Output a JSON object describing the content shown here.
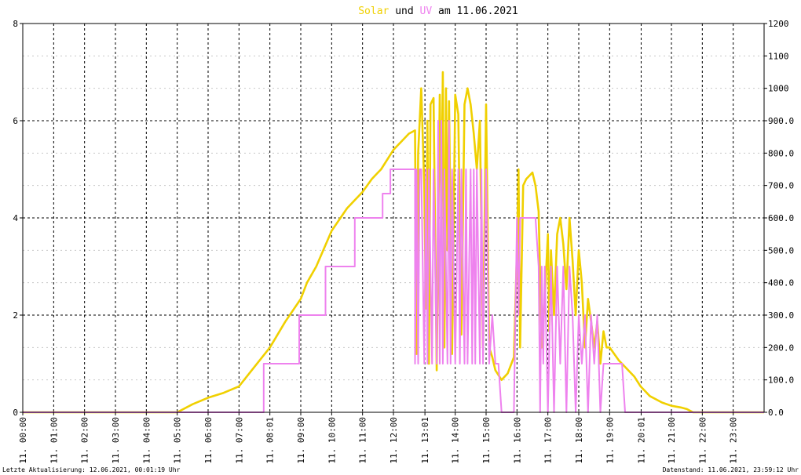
{
  "chart_data": {
    "type": "line",
    "title_parts": [
      {
        "text": "Solar",
        "color": "#f0d000"
      },
      {
        "text": " und ",
        "color": "#000000"
      },
      {
        "text": "UV",
        "color": "#ee82ee"
      },
      {
        "text": " am 11.06.2021",
        "color": "#000000"
      }
    ],
    "xlim": [
      0,
      24
    ],
    "x_ticks": [
      {
        "x": 0.0,
        "label": "11. 00:00"
      },
      {
        "x": 1.0,
        "label": "11. 01:00"
      },
      {
        "x": 2.0,
        "label": "11. 02:00"
      },
      {
        "x": 3.0,
        "label": "11. 03:00"
      },
      {
        "x": 4.0,
        "label": "11. 04:00"
      },
      {
        "x": 5.0,
        "label": "11. 05:00"
      },
      {
        "x": 6.0,
        "label": "11. 06:00"
      },
      {
        "x": 7.0,
        "label": "11. 07:00"
      },
      {
        "x": 8.0,
        "label": "11. 08:01"
      },
      {
        "x": 9.0,
        "label": "11. 09:00"
      },
      {
        "x": 10.0,
        "label": "11. 10:00"
      },
      {
        "x": 11.0,
        "label": "11. 11:00"
      },
      {
        "x": 12.0,
        "label": "11. 12:00"
      },
      {
        "x": 13.02,
        "label": "11. 13:01"
      },
      {
        "x": 14.0,
        "label": "11. 14:00"
      },
      {
        "x": 15.0,
        "label": "11. 15:00"
      },
      {
        "x": 16.0,
        "label": "11. 16:00"
      },
      {
        "x": 17.0,
        "label": "11. 17:00"
      },
      {
        "x": 18.0,
        "label": "11. 18:00"
      },
      {
        "x": 19.0,
        "label": "11. 19:00"
      },
      {
        "x": 20.02,
        "label": "11. 20:01"
      },
      {
        "x": 21.0,
        "label": "11. 21:00"
      },
      {
        "x": 22.0,
        "label": "11. 22:00"
      },
      {
        "x": 23.0,
        "label": "11. 23:00"
      }
    ],
    "y_left": {
      "lim": [
        0,
        8
      ],
      "ticks": [
        "0",
        "2",
        "4",
        "6",
        "8"
      ]
    },
    "y_right": {
      "lim": [
        0,
        1200
      ],
      "ticks": [
        "0.0",
        "100.0",
        "200.0",
        "300.0",
        "400.0",
        "500.0",
        "600.0",
        "700.0",
        "800.0",
        "900.0",
        "1000",
        "1100",
        "1200"
      ]
    },
    "grid": true,
    "series": [
      {
        "axis": "right",
        "color": "#f0d000",
        "x": [
          0,
          5.0,
          5.5,
          6.0,
          6.5,
          7.0,
          7.5,
          8.0,
          8.5,
          9.0,
          9.2,
          9.5,
          10.0,
          10.5,
          11.0,
          11.3,
          11.5,
          11.6,
          12.0,
          12.5,
          12.7,
          12.75,
          12.8,
          12.9,
          13.0,
          13.05,
          13.1,
          13.15,
          13.2,
          13.3,
          13.4,
          13.5,
          13.55,
          13.6,
          13.65,
          13.7,
          13.75,
          13.8,
          13.9,
          14.0,
          14.1,
          14.2,
          14.3,
          14.4,
          14.5,
          14.6,
          14.7,
          14.8,
          14.9,
          15.0,
          15.1,
          15.2,
          15.3,
          15.5,
          15.7,
          15.9,
          16.0,
          16.05,
          16.1,
          16.2,
          16.3,
          16.5,
          16.6,
          16.7,
          16.8,
          16.9,
          17.0,
          17.05,
          17.1,
          17.2,
          17.3,
          17.4,
          17.5,
          17.6,
          17.7,
          17.8,
          17.9,
          18.0,
          18.1,
          18.2,
          18.3,
          18.4,
          18.5,
          18.6,
          18.7,
          18.8,
          18.9,
          19.0,
          19.3,
          19.5,
          19.8,
          20.0,
          20.3,
          20.7,
          21.0,
          21.3,
          21.5,
          21.7,
          24
        ],
        "y": [
          0,
          0,
          25,
          45,
          60,
          80,
          140,
          200,
          280,
          350,
          400,
          450,
          560,
          630,
          680,
          720,
          740,
          750,
          810,
          860,
          870,
          180,
          800,
          1000,
          700,
          320,
          900,
          150,
          950,
          970,
          130,
          980,
          600,
          1050,
          200,
          1000,
          500,
          960,
          180,
          980,
          920,
          240,
          950,
          1000,
          950,
          860,
          750,
          900,
          200,
          950,
          200,
          170,
          130,
          100,
          120,
          170,
          500,
          750,
          200,
          700,
          720,
          740,
          700,
          620,
          200,
          350,
          550,
          250,
          500,
          300,
          550,
          600,
          520,
          380,
          600,
          470,
          300,
          500,
          400,
          200,
          350,
          280,
          200,
          280,
          150,
          250,
          200,
          200,
          160,
          140,
          110,
          80,
          50,
          30,
          20,
          15,
          10,
          0,
          0
        ]
      },
      {
        "axis": "left",
        "color": "#ee82ee",
        "x": [
          0,
          7.8,
          7.8,
          8.95,
          8.95,
          9.8,
          9.8,
          10.75,
          10.75,
          11.65,
          11.65,
          11.9,
          11.9,
          12.7,
          12.7,
          12.75,
          12.8,
          12.85,
          12.9,
          13.0,
          13.05,
          13.1,
          13.15,
          13.25,
          13.3,
          13.4,
          13.45,
          13.5,
          13.55,
          13.6,
          13.65,
          13.75,
          13.8,
          13.85,
          13.9,
          14.0,
          14.1,
          14.15,
          14.2,
          14.3,
          14.35,
          14.4,
          14.5,
          14.55,
          14.6,
          14.65,
          14.7,
          14.8,
          14.85,
          14.9,
          15.0,
          15.1,
          15.2,
          15.3,
          15.4,
          15.5,
          15.8,
          15.9,
          16.0,
          16.05,
          16.1,
          16.2,
          16.3,
          16.5,
          16.6,
          16.7,
          16.75,
          16.8,
          16.85,
          16.9,
          17.0,
          17.1,
          17.2,
          17.3,
          17.4,
          17.5,
          17.6,
          17.7,
          17.8,
          17.9,
          18.0,
          18.1,
          18.2,
          18.3,
          18.4,
          18.5,
          18.6,
          18.7,
          18.8,
          18.9,
          19.0,
          19.4,
          19.5,
          24
        ],
        "y": [
          0,
          0,
          1,
          1,
          2,
          2,
          3,
          3,
          4,
          4,
          4.5,
          4.5,
          5,
          5,
          1,
          5,
          1,
          5,
          5,
          1,
          5,
          1,
          5,
          1,
          5,
          1,
          6,
          1,
          6,
          1,
          5,
          1,
          6,
          1,
          5,
          1,
          5,
          1,
          5,
          1,
          5,
          1,
          5,
          1,
          5,
          1,
          5,
          1,
          5,
          1,
          5,
          1,
          2,
          1,
          1,
          0,
          0,
          0,
          4,
          2,
          4,
          4,
          4,
          4,
          4,
          3,
          0,
          3,
          1,
          3,
          0,
          3,
          0,
          3,
          1,
          3,
          0,
          3,
          2,
          0,
          2,
          1,
          2,
          0,
          2,
          1,
          2,
          0,
          1,
          1,
          1,
          1,
          0,
          0
        ]
      }
    ]
  },
  "footer": {
    "left": "Letzte Aktualisierung: 12.06.2021, 00:01:19 Uhr",
    "right": "Datenstand: 11.06.2021, 23:59:12 Uhr"
  },
  "colors": {
    "grid_major": "#000000",
    "grid_minor": "#c8c8c8",
    "axis": "#000000"
  }
}
